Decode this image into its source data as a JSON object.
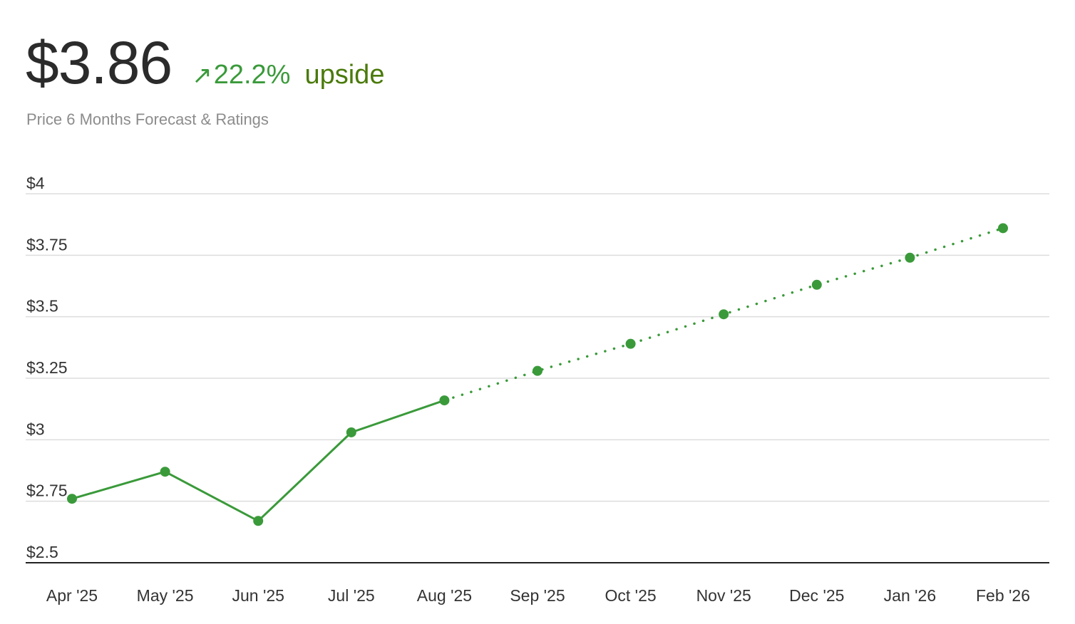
{
  "header": {
    "price": "$3.86",
    "change_arrow": "↗",
    "change_pct": "22.2%",
    "change_label": "upside",
    "subtitle": "Price 6 Months Forecast & Ratings"
  },
  "colors": {
    "line": "#3a9a3a",
    "point": "#3a9a3a",
    "grid": "#dddddd",
    "axis": "#222222",
    "accent_text": "#4a7a0a"
  },
  "chart_data": {
    "type": "line",
    "categories": [
      "Apr '25",
      "May '25",
      "Jun '25",
      "Jul '25",
      "Aug '25",
      "Sep '25",
      "Oct '25",
      "Nov '25",
      "Dec '25",
      "Jan '26",
      "Feb '26"
    ],
    "series": [
      {
        "style": "solid",
        "values": [
          2.76,
          2.87,
          2.67,
          3.03,
          3.16,
          null,
          null,
          null,
          null,
          null,
          null
        ]
      },
      {
        "style": "dotted",
        "values": [
          null,
          null,
          null,
          null,
          3.16,
          3.28,
          3.39,
          3.51,
          3.63,
          3.74,
          3.86
        ]
      }
    ],
    "y_ticks": [
      {
        "value": 4,
        "label": "$4"
      },
      {
        "value": 3.75,
        "label": "$3.75"
      },
      {
        "value": 3.5,
        "label": "$3.5"
      },
      {
        "value": 3.25,
        "label": "$3.25"
      },
      {
        "value": 3,
        "label": "$3"
      },
      {
        "value": 2.75,
        "label": "$2.75"
      },
      {
        "value": 2.5,
        "label": "$2.5"
      }
    ],
    "ylim": [
      2.5,
      4
    ],
    "grid": true,
    "xlabel": "",
    "ylabel": ""
  }
}
